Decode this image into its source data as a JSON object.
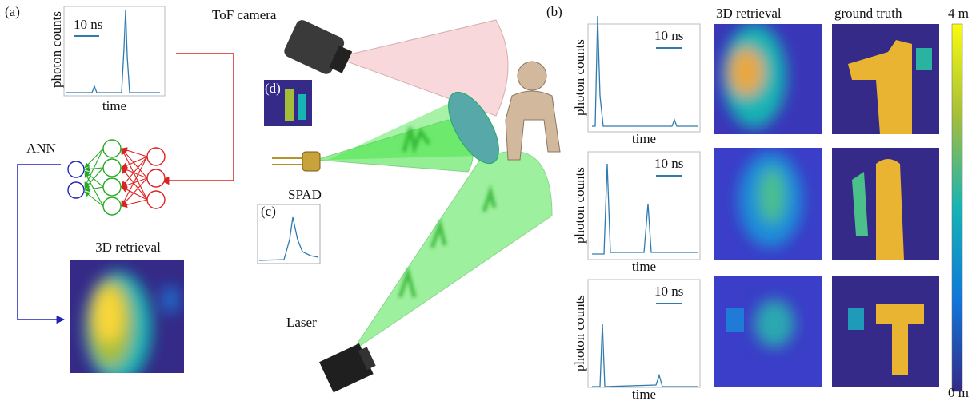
{
  "panel_a": {
    "label": "(a)",
    "histogram": {
      "scale": "10 ns",
      "y_label": "photon counts",
      "x_label": "time"
    },
    "network_label": "ANN",
    "retrieval_title": "3D retrieval"
  },
  "setup": {
    "camera": "ToF camera",
    "inset_d": "(d)",
    "detector": "SPAD",
    "inset_c": "(c)",
    "source": "Laser"
  },
  "panel_b": {
    "label": "(b)",
    "histograms": [
      {
        "scale": "10 ns",
        "y_label": "photon counts",
        "x_label": "time"
      },
      {
        "scale": "10 ns",
        "y_label": "photon counts",
        "x_label": "time"
      },
      {
        "scale": "10 ns",
        "y_label": "photon counts",
        "x_label": "time"
      }
    ],
    "columns": [
      "3D retrieval",
      "ground truth"
    ],
    "colorbar": {
      "max": "4 m",
      "min": "0 m"
    }
  }
}
